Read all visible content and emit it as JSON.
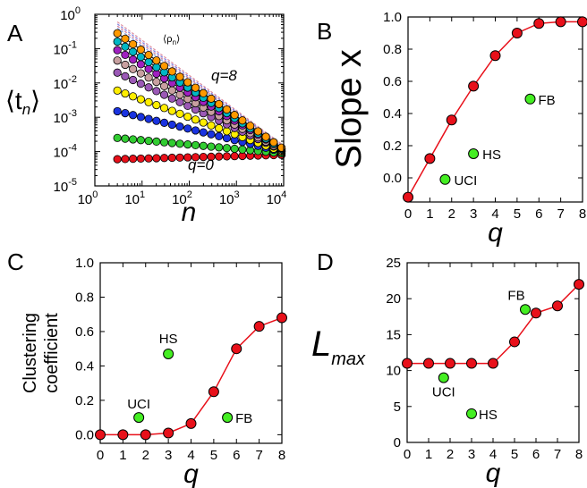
{
  "colors": {
    "model_series": "#e8101a",
    "data_points": "#44ee22",
    "q8_label": "#f0a000",
    "q0_label": "#e8101a",
    "panelA_series": [
      "#e8101a",
      "#32cd32",
      "#1a33e0",
      "#ffee00",
      "#9b59b6",
      "#c8a0a0",
      "#a020c0",
      "#00b7c4",
      "#ff9900"
    ]
  },
  "chart_data": [
    {
      "id": "A",
      "type": "scatter",
      "panel_letter": "A",
      "xlabel": "n",
      "ylabel_main": "⟨t",
      "ylabel_sub": "n",
      "ylabel_end": "⟩",
      "xscale": "log",
      "yscale": "log",
      "xlim": [
        1,
        10000
      ],
      "ylim": [
        1e-05,
        1
      ],
      "xticks": [
        {
          "value": 1,
          "base": "10",
          "exp": "0"
        },
        {
          "value": 10,
          "base": "10",
          "exp": "1"
        },
        {
          "value": 100,
          "base": "10",
          "exp": "2"
        },
        {
          "value": 1000,
          "base": "10",
          "exp": "3"
        },
        {
          "value": 10000,
          "base": "10",
          "exp": "4"
        }
      ],
      "yticks": [
        {
          "value": 1e-05,
          "base": "10",
          "exp": "-5"
        },
        {
          "value": 0.0001,
          "base": "10",
          "exp": "-4"
        },
        {
          "value": 0.001,
          "base": "10",
          "exp": "-3"
        },
        {
          "value": 0.01,
          "base": "10",
          "exp": "-2"
        },
        {
          "value": 0.1,
          "base": "10",
          "exp": "-1"
        },
        {
          "value": 1,
          "base": "10",
          "exp": "0"
        }
      ],
      "annotations": {
        "rho_label": "⟨ρ",
        "rho_sub": "n",
        "rho_end": "⟩",
        "q8_label": "q=8",
        "q0_label": "q=0"
      },
      "series": [
        {
          "q": 0,
          "y_start": 6e-05,
          "y_end": 8e-05
        },
        {
          "q": 1,
          "y_start": 0.00025,
          "y_end": 9e-05
        },
        {
          "q": 2,
          "y_start": 0.0015,
          "y_end": 0.0001
        },
        {
          "q": 3,
          "y_start": 0.006,
          "y_end": 0.0001
        },
        {
          "q": 4,
          "y_start": 0.02,
          "y_end": 0.00011
        },
        {
          "q": 5,
          "y_start": 0.045,
          "y_end": 0.00011
        },
        {
          "q": 6,
          "y_start": 0.09,
          "y_end": 0.00012
        },
        {
          "q": 7,
          "y_start": 0.16,
          "y_end": 0.00012
        },
        {
          "q": 8,
          "y_start": 0.28,
          "y_end": 0.00013
        }
      ],
      "dashed_lines": {
        "y_start": 0.6,
        "y_end": 0.00015,
        "count": 4
      }
    },
    {
      "id": "B",
      "type": "line",
      "panel_letter": "B",
      "xlabel": "q",
      "ylabel": "Slope x",
      "xlim": [
        0,
        8
      ],
      "ylim": [
        -0.15,
        1.0
      ],
      "xticks": [
        0,
        1,
        2,
        3,
        4,
        5,
        6,
        7,
        8
      ],
      "yticks": [
        0.0,
        0.2,
        0.4,
        0.6,
        0.8,
        1.0
      ],
      "ytick_labels": [
        "0.0",
        "0.2",
        "0.4",
        "0.6",
        "0.8",
        "1.0"
      ],
      "model": {
        "x": [
          0,
          1,
          2,
          3,
          4,
          5,
          6,
          7,
          8
        ],
        "y": [
          -0.12,
          0.12,
          0.36,
          0.57,
          0.76,
          0.9,
          0.96,
          0.97,
          0.97
        ]
      },
      "datasets": [
        {
          "label": "UCI",
          "x": 1.7,
          "y": -0.01
        },
        {
          "label": "HS",
          "x": 3.0,
          "y": 0.15
        },
        {
          "label": "FB",
          "x": 5.6,
          "y": 0.49
        }
      ]
    },
    {
      "id": "C",
      "type": "line",
      "panel_letter": "C",
      "xlabel": "q",
      "ylabel_line1": "Clustering",
      "ylabel_line2": "coefficient",
      "xlim": [
        0,
        8
      ],
      "ylim": [
        -0.05,
        1.0
      ],
      "xticks": [
        0,
        1,
        2,
        3,
        4,
        5,
        6,
        7,
        8
      ],
      "yticks": [
        0.0,
        0.2,
        0.4,
        0.6,
        0.8,
        1.0
      ],
      "ytick_labels": [
        "0.0",
        "0.2",
        "0.4",
        "0.6",
        "0.8",
        "1.0"
      ],
      "model": {
        "x": [
          0,
          1,
          2,
          3,
          4,
          5,
          6,
          7,
          8
        ],
        "y": [
          0.0,
          0.0,
          0.0,
          0.01,
          0.065,
          0.25,
          0.5,
          0.63,
          0.68
        ]
      },
      "datasets": [
        {
          "label": "UCI",
          "x": 1.7,
          "y": 0.1
        },
        {
          "label": "HS",
          "x": 3.0,
          "y": 0.47
        },
        {
          "label": "FB",
          "x": 5.6,
          "y": 0.1
        }
      ]
    },
    {
      "id": "D",
      "type": "line",
      "panel_letter": "D",
      "xlabel": "q",
      "ylabel_main": "L",
      "ylabel_sub": "max",
      "xlim": [
        0,
        8
      ],
      "ylim": [
        0,
        25
      ],
      "xticks": [
        0,
        1,
        2,
        3,
        4,
        5,
        6,
        7,
        8
      ],
      "yticks": [
        0,
        5,
        10,
        15,
        20,
        25
      ],
      "ytick_labels": [
        "0",
        "5",
        "10",
        "15",
        "20",
        "25"
      ],
      "model": {
        "x": [
          0,
          1,
          2,
          3,
          4,
          5,
          6,
          7,
          8
        ],
        "y": [
          11,
          11,
          11,
          11,
          11,
          14,
          18,
          19,
          22
        ]
      },
      "datasets": [
        {
          "label": "UCI",
          "x": 1.7,
          "y": 9
        },
        {
          "label": "HS",
          "x": 3.0,
          "y": 4
        },
        {
          "label": "FB",
          "x": 5.5,
          "y": 18.5
        }
      ]
    }
  ]
}
